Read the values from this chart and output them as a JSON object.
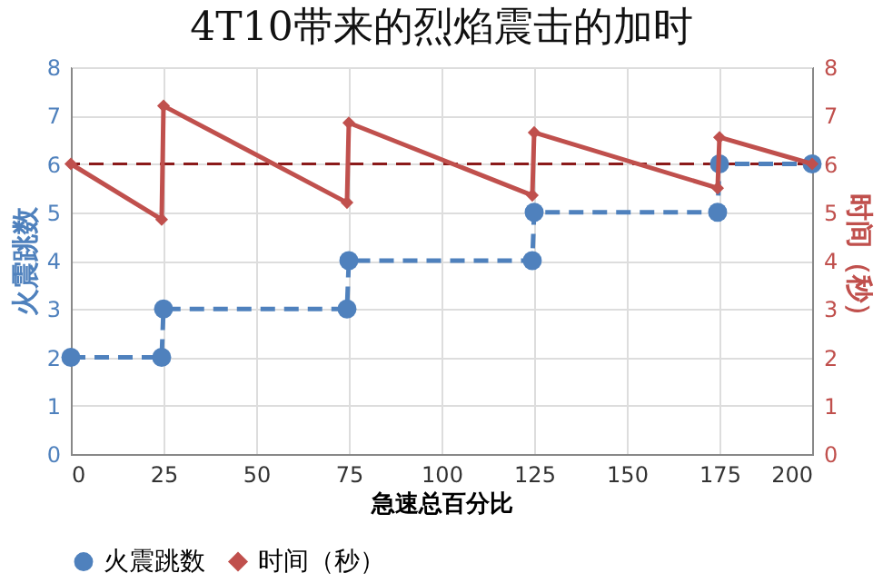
{
  "chart_data": {
    "type": "line",
    "title": "4T10带来的烈焰震击的加时",
    "xlabel": "急速总百分比",
    "ylabel": "火震跳数",
    "y2label": "时间（秒）",
    "xlim": [
      0,
      200
    ],
    "xticks": [
      0,
      25,
      50,
      75,
      100,
      125,
      150,
      175,
      200
    ],
    "ylim": [
      0,
      8
    ],
    "yticks": [
      0,
      1,
      2,
      3,
      4,
      5,
      6,
      7,
      8
    ],
    "y2lim": [
      0,
      8
    ],
    "y2ticks": [
      0,
      1,
      2,
      3,
      4,
      5,
      6,
      7,
      8
    ],
    "grid": true,
    "legend": "bottom",
    "series": [
      {
        "name": "火震跳数",
        "color": "#4f81bd",
        "marker": "circle",
        "line_style": "dashed",
        "x": [
          0,
          24.5,
          25,
          74.5,
          75,
          124.5,
          125,
          174.5,
          175,
          200
        ],
        "values": [
          2,
          2,
          3,
          3,
          4,
          4,
          5,
          5,
          6,
          6
        ]
      },
      {
        "name": "时间（秒）",
        "color": "#c0504d",
        "marker": "diamond",
        "line_style": "solid",
        "axis": "y2",
        "x": [
          0,
          24.5,
          25,
          74.5,
          75,
          124.5,
          125,
          174.5,
          175,
          200
        ],
        "values": [
          6,
          4.85,
          7.2,
          5.2,
          6.85,
          5.35,
          6.65,
          5.5,
          6.55,
          6
        ]
      }
    ],
    "ref_lines": [
      {
        "axis": "y",
        "value": 6,
        "color": "#8b1a1a",
        "line_style": "dashed"
      }
    ]
  }
}
